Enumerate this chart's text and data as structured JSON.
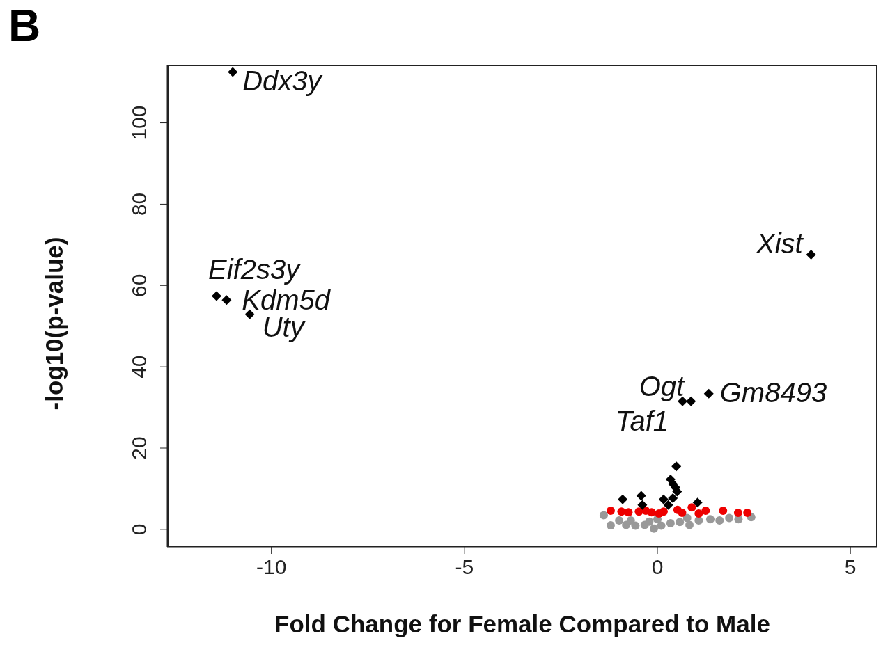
{
  "chart_data": {
    "type": "scatter",
    "xlabel": "Fold Change for Female Compared to Male",
    "ylabel": "-log10(p-value)",
    "xlim": [
      -12.7,
      5.7
    ],
    "xticks": [
      -10,
      -5,
      0,
      5
    ],
    "ylim": [
      -4.3,
      114.3
    ],
    "yticks": [
      0,
      20,
      40,
      60,
      80,
      100
    ],
    "grid": false,
    "legend": false,
    "series": [
      {
        "color": "#999999",
        "marker": "circle",
        "x": [
          -1.39,
          -1.21,
          -0.99,
          -0.81,
          -0.69,
          -0.57,
          -0.33,
          -0.21,
          -0.09,
          0.0,
          0.1,
          0.34,
          0.58,
          0.77,
          0.83,
          1.07,
          1.37,
          1.61,
          1.86,
          2.1,
          2.43
        ],
        "values": [
          3.5,
          1.0,
          2.2,
          1.1,
          2.2,
          0.9,
          1.1,
          1.9,
          0.2,
          2.5,
          0.9,
          1.5,
          1.8,
          2.8,
          1.1,
          2.2,
          2.5,
          2.2,
          2.8,
          2.5,
          3.0
        ]
      },
      {
        "color": "#ee0000",
        "marker": "circle",
        "x": [
          -1.21,
          -0.93,
          -0.75,
          -0.48,
          -0.3,
          -0.15,
          0.04,
          0.16,
          0.34,
          0.52,
          0.64,
          0.89,
          1.07,
          1.25,
          1.7,
          2.09,
          2.33
        ],
        "values": [
          4.6,
          4.4,
          4.2,
          4.4,
          4.6,
          4.2,
          3.9,
          4.4,
          null,
          4.8,
          4.1,
          5.4,
          3.9,
          4.6,
          4.6,
          4.1,
          4.1
        ]
      },
      {
        "color": "#000000",
        "marker": "diamond",
        "x": [
          -11.0,
          -11.42,
          -11.16,
          -10.56,
          3.98,
          0.65,
          0.87,
          1.33,
          0.49,
          0.34,
          0.4,
          0.47,
          0.51,
          -0.9,
          -0.42,
          -0.39,
          0.16,
          0.28,
          0.4,
          1.04
        ],
        "values": [
          112.5,
          57.4,
          56.4,
          52.9,
          67.6,
          31.5,
          31.5,
          33.4,
          15.5,
          12.3,
          11.2,
          10.3,
          9.3,
          7.4,
          8.3,
          6.0,
          7.4,
          6.0,
          7.7,
          6.6
        ]
      }
    ],
    "annotations": [
      "B",
      {
        "text": "Ddx3y",
        "x": -11.0,
        "y": 112.5
      },
      {
        "text": "Eif2s3y",
        "x": -11.42,
        "y": 57.4
      },
      {
        "text": "Kdm5d",
        "x": -11.16,
        "y": 56.4
      },
      {
        "text": "Uty",
        "x": -10.56,
        "y": 52.9
      },
      {
        "text": "Xist",
        "x": 3.98,
        "y": 67.6
      },
      {
        "text": "Ogt",
        "x": 0.87,
        "y": 31.5
      },
      {
        "text": "Taf1",
        "x": 0.65,
        "y": 31.5
      },
      {
        "text": "Gm8493",
        "x": 1.33,
        "y": 33.4
      }
    ]
  }
}
